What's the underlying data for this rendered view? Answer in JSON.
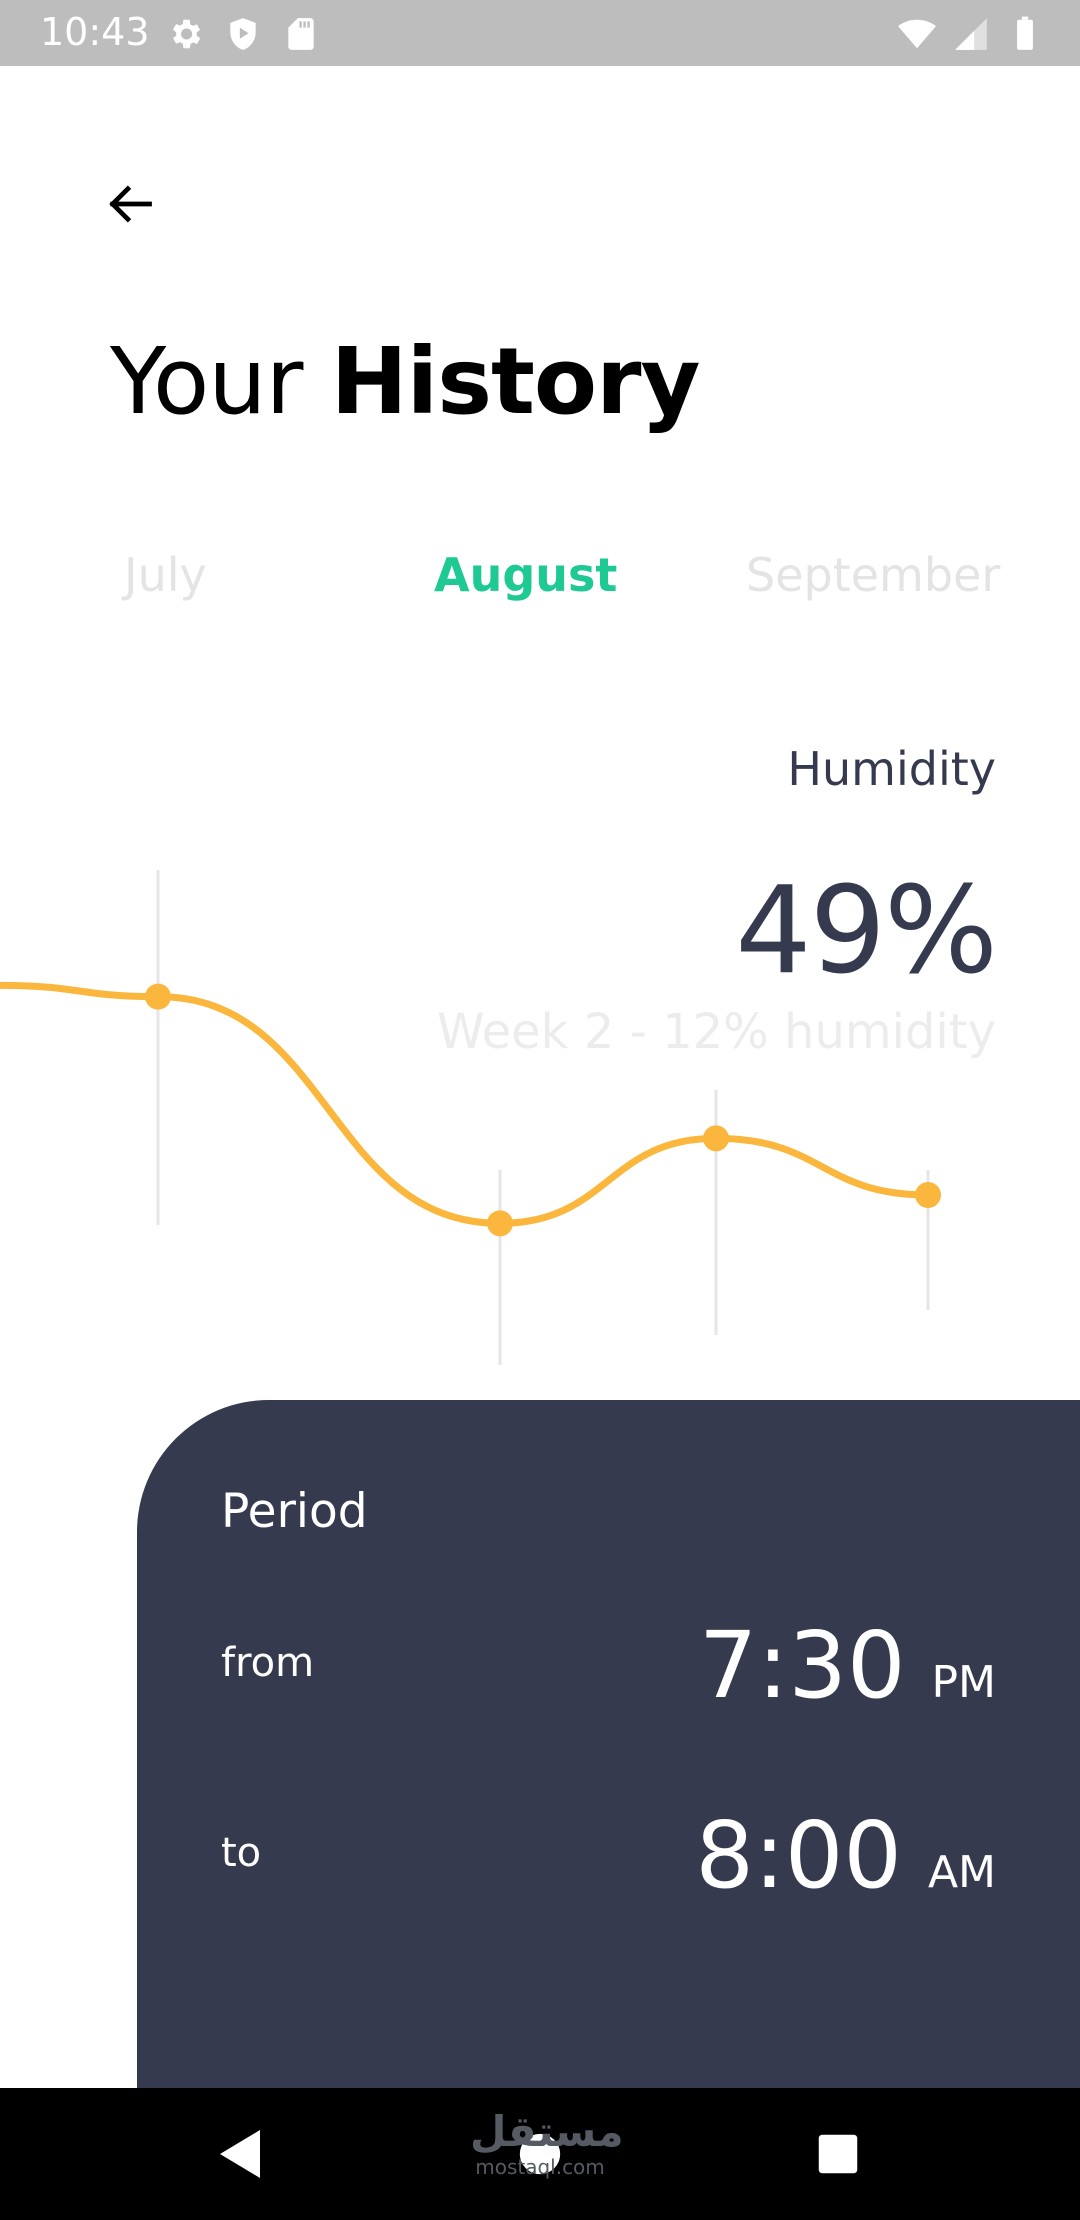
{
  "status_bar": {
    "time": "10:43",
    "left_icons": [
      "gear-icon",
      "shield-play-icon",
      "sd-card-icon"
    ],
    "right_icons": [
      "wifi-icon",
      "signal-icon",
      "battery-icon"
    ]
  },
  "header": {
    "back_icon": "arrow-left-icon",
    "title_light": "Your",
    "title_bold": "History"
  },
  "months": {
    "tabs": [
      {
        "label": "July",
        "active": false
      },
      {
        "label": "August",
        "active": true
      },
      {
        "label": "September",
        "active": false
      }
    ]
  },
  "metric": {
    "label": "Humidity",
    "value": "49%",
    "sub": "Week 2 - 12% humidity"
  },
  "chart_data": {
    "type": "line",
    "series": [
      {
        "values": [
          0.52,
          0.5,
          0.1,
          0.25,
          0.15
        ]
      }
    ],
    "xlabel": "",
    "ylabel": "",
    "grid": false,
    "color": "#fbb73d"
  },
  "period": {
    "title": "Period",
    "from_label": "from",
    "from_time": "7:30",
    "from_ampm": "PM",
    "to_label": "to",
    "to_time": "8:00",
    "to_ampm": "AM"
  },
  "nav_bar": {
    "icons": [
      "back-triangle-icon",
      "home-circle-icon",
      "recents-square-icon"
    ]
  },
  "watermark": {
    "logo": "مستقل",
    "url": "mostaql.com"
  },
  "colors": {
    "accent": "#1ec994",
    "line": "#fbb73d",
    "panel": "#363a4e",
    "text_dark": "#353a4e"
  }
}
